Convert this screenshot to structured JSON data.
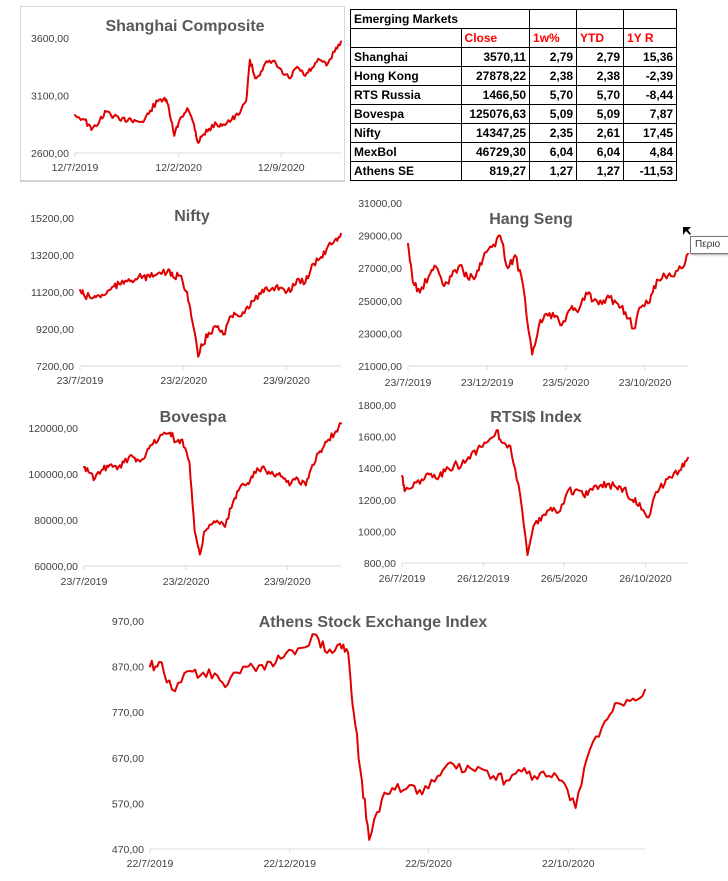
{
  "table": {
    "title": "Emerging Markets",
    "headers": [
      "",
      "Close",
      "1w%",
      "YTD",
      "1Y R"
    ],
    "rows": [
      [
        "Shanghai",
        "3570,11",
        "2,79",
        "2,79",
        "15,36"
      ],
      [
        "Hong Kong",
        "27878,22",
        "2,38",
        "2,38",
        "-2,39"
      ],
      [
        "RTS Russia",
        "1466,50",
        "5,70",
        "5,70",
        "-8,44"
      ],
      [
        "Bovespa",
        "125076,63",
        "5,09",
        "5,09",
        "7,87"
      ],
      [
        "Nifty",
        "14347,25",
        "2,35",
        "2,61",
        "17,45"
      ],
      [
        "MexBol",
        "46729,30",
        "6,04",
        "6,04",
        "4,84"
      ],
      [
        "Athens SE",
        "819,27",
        "1,27",
        "1,27",
        "-11,53"
      ]
    ]
  },
  "tooltip": {
    "text": "Περιο"
  },
  "colors": {
    "series": "#e00000",
    "header_red": "#ff0000",
    "title_gray": "#595959"
  },
  "chart_data": [
    {
      "type": "line",
      "title": "Shanghai Composite",
      "ylim": [
        2600,
        3600
      ],
      "yticks": [
        "2600,00",
        "3100,00",
        "3600,00"
      ],
      "xticks": [
        "12/7/2019",
        "12/2/2020",
        "12/9/2020"
      ],
      "x_range": [
        "12/7/2019",
        "14/1/2021"
      ],
      "series": [
        {
          "x": [
            "12/7/2019",
            "1/8/2019",
            "15/8/2019",
            "1/9/2019",
            "15/9/2019",
            "1/10/2019",
            "15/10/2019",
            "1/11/2019",
            "15/11/2019",
            "1/12/2019",
            "15/12/2019",
            "31/12/2019",
            "14/1/2020",
            "23/1/2020",
            "3/2/2020",
            "15/2/2020",
            "1/3/2020",
            "15/3/2020",
            "23/3/2020",
            "1/4/2020",
            "15/4/2020",
            "1/5/2020",
            "15/5/2020",
            "1/6/2020",
            "15/6/2020",
            "1/7/2020",
            "9/7/2020",
            "20/7/2020",
            "1/8/2020",
            "15/8/2020",
            "1/9/2020",
            "15/9/2020",
            "1/10/2020",
            "15/10/2020",
            "1/11/2020",
            "15/11/2020",
            "1/12/2020",
            "15/12/2020",
            "1/1/2021",
            "14/1/2021"
          ],
          "values": [
            2930,
            2890,
            2800,
            2880,
            2960,
            2920,
            2880,
            2900,
            2880,
            2870,
            2970,
            3050,
            3080,
            2980,
            2750,
            2900,
            2990,
            2850,
            2690,
            2750,
            2810,
            2850,
            2850,
            2890,
            2930,
            3050,
            3410,
            3250,
            3310,
            3390,
            3380,
            3290,
            3250,
            3350,
            3270,
            3340,
            3410,
            3360,
            3480,
            3570
          ]
        }
      ]
    },
    {
      "type": "line",
      "title": "Nifty",
      "ylim": [
        7200,
        15200
      ],
      "yticks": [
        "7200,00",
        "9200,00",
        "11200,00",
        "13200,00",
        "15200,00"
      ],
      "xticks": [
        "23/7/2019",
        "23/2/2020",
        "23/9/2020"
      ],
      "x_range": [
        "23/7/2019",
        "14/1/2021"
      ],
      "series": [
        {
          "x": [
            "23/7/2019",
            "1/8/2019",
            "20/8/2019",
            "1/9/2019",
            "15/9/2019",
            "1/10/2019",
            "15/10/2019",
            "1/11/2019",
            "15/11/2019",
            "1/12/2019",
            "15/12/2019",
            "31/12/2019",
            "20/1/2020",
            "1/2/2020",
            "15/2/2020",
            "1/3/2020",
            "12/3/2020",
            "24/3/2020",
            "1/4/2020",
            "15/4/2020",
            "1/5/2020",
            "15/5/2020",
            "1/6/2020",
            "15/6/2020",
            "1/7/2020",
            "15/7/2020",
            "1/8/2020",
            "15/8/2020",
            "1/9/2020",
            "15/9/2020",
            "1/10/2020",
            "15/10/2020",
            "1/11/2020",
            "15/11/2020",
            "1/12/2020",
            "15/12/2020",
            "1/1/2021",
            "14/1/2021"
          ],
          "values": [
            11300,
            11000,
            10900,
            11000,
            11100,
            11500,
            11600,
            11900,
            11900,
            12050,
            12000,
            12200,
            12300,
            12000,
            12100,
            11200,
            9600,
            7700,
            8300,
            9000,
            9300,
            8900,
            9900,
            9900,
            10300,
            10700,
            11100,
            11300,
            11500,
            11400,
            11200,
            11900,
            11700,
            12700,
            13000,
            13500,
            14000,
            14347
          ]
        }
      ]
    },
    {
      "type": "line",
      "title": "Hang Seng",
      "ylim": [
        21000,
        31000
      ],
      "yticks": [
        "21000,00",
        "23000,00",
        "25000,00",
        "27000,00",
        "29000,00",
        "31000,00"
      ],
      "xticks": [
        "23/7/2019",
        "23/12/2019",
        "23/5/2020",
        "23/10/2020"
      ],
      "x_range": [
        "23/7/2019",
        "14/1/2021"
      ],
      "series": [
        {
          "x": [
            "23/7/2019",
            "1/8/2019",
            "15/8/2019",
            "1/9/2019",
            "15/9/2019",
            "1/10/2019",
            "15/10/2019",
            "1/11/2019",
            "15/11/2019",
            "1/12/2019",
            "15/12/2019",
            "1/1/2020",
            "17/1/2020",
            "1/2/2020",
            "15/2/2020",
            "1/3/2020",
            "19/3/2020",
            "1/4/2020",
            "15/4/2020",
            "1/5/2020",
            "15/5/2020",
            "1/6/2020",
            "15/6/2020",
            "1/7/2020",
            "15/7/2020",
            "1/8/2020",
            "15/8/2020",
            "1/9/2020",
            "15/9/2020",
            "1/10/2020",
            "15/10/2020",
            "1/11/2020",
            "15/11/2020",
            "1/12/2020",
            "15/12/2020",
            "1/1/2021",
            "14/1/2021"
          ],
          "values": [
            28500,
            26200,
            25500,
            26500,
            27100,
            25900,
            26500,
            27200,
            26400,
            26500,
            27600,
            28300,
            29000,
            27000,
            27800,
            26000,
            21700,
            23500,
            24200,
            24000,
            23500,
            24500,
            24300,
            25500,
            25000,
            24800,
            25200,
            24800,
            24300,
            23300,
            24600,
            24900,
            26300,
            26500,
            26500,
            27000,
            27878
          ]
        }
      ]
    },
    {
      "type": "line",
      "title": "Bovespa",
      "ylim": [
        60000,
        120000
      ],
      "yticks": [
        "60000,00",
        "80000,00",
        "100000,00",
        "120000,00"
      ],
      "xticks": [
        "23/7/2019",
        "23/2/2020",
        "23/9/2020"
      ],
      "x_range": [
        "23/7/2019",
        "14/1/2021"
      ],
      "series": [
        {
          "x": [
            "23/7/2019",
            "1/8/2019",
            "15/8/2019",
            "1/9/2019",
            "15/9/2019",
            "1/10/2019",
            "15/10/2019",
            "1/11/2019",
            "15/11/2019",
            "1/12/2019",
            "15/12/2019",
            "31/12/2019",
            "20/1/2020",
            "1/2/2020",
            "15/2/2020",
            "1/3/2020",
            "12/3/2020",
            "23/3/2020",
            "1/4/2020",
            "15/4/2020",
            "1/5/2020",
            "15/5/2020",
            "1/6/2020",
            "15/6/2020",
            "1/7/2020",
            "15/7/2020",
            "1/8/2020",
            "15/8/2020",
            "1/9/2020",
            "15/9/2020",
            "1/10/2020",
            "15/10/2020",
            "1/11/2020",
            "15/11/2020",
            "1/12/2020",
            "15/12/2020",
            "1/1/2021",
            "14/1/2021"
          ],
          "values": [
            103000,
            101000,
            98000,
            102000,
            104000,
            102000,
            105000,
            108000,
            106000,
            109000,
            113000,
            117000,
            118000,
            114000,
            115000,
            105000,
            75000,
            65000,
            75000,
            78000,
            79000,
            77000,
            88000,
            94000,
            96000,
            101000,
            103000,
            101000,
            100000,
            98000,
            96000,
            98000,
            95000,
            104000,
            110000,
            114000,
            118000,
            122000
          ]
        }
      ]
    },
    {
      "type": "line",
      "title": "RTSI$ Index",
      "ylim": [
        800,
        1800
      ],
      "yticks": [
        "800,00",
        "1000,00",
        "1200,00",
        "1400,00",
        "1600,00",
        "1800,00"
      ],
      "xticks": [
        "26/7/2019",
        "26/12/2019",
        "26/5/2020",
        "26/10/2020"
      ],
      "x_range": [
        "26/7/2019",
        "14/1/2021"
      ],
      "series": [
        {
          "x": [
            "26/7/2019",
            "1/8/2019",
            "15/8/2019",
            "1/9/2019",
            "15/9/2019",
            "1/10/2019",
            "15/10/2019",
            "1/11/2019",
            "15/11/2019",
            "1/12/2019",
            "15/12/2019",
            "31/12/2019",
            "20/1/2020",
            "1/2/2020",
            "15/2/2020",
            "1/3/2020",
            "18/3/2020",
            "1/4/2020",
            "15/4/2020",
            "1/5/2020",
            "15/5/2020",
            "1/6/2020",
            "15/6/2020",
            "1/7/2020",
            "15/7/2020",
            "1/8/2020",
            "15/8/2020",
            "1/9/2020",
            "15/9/2020",
            "1/10/2020",
            "15/10/2020",
            "1/11/2020",
            "15/11/2020",
            "1/12/2020",
            "15/12/2020",
            "1/1/2021",
            "14/1/2021"
          ],
          "values": [
            1350,
            1260,
            1280,
            1330,
            1360,
            1330,
            1380,
            1420,
            1420,
            1460,
            1520,
            1560,
            1640,
            1560,
            1540,
            1300,
            850,
            1050,
            1100,
            1150,
            1120,
            1250,
            1260,
            1230,
            1270,
            1290,
            1300,
            1280,
            1270,
            1200,
            1180,
            1090,
            1250,
            1300,
            1340,
            1390,
            1466
          ]
        }
      ]
    },
    {
      "type": "line",
      "title": "Athens Stock Exchange Index",
      "ylim": [
        470,
        970
      ],
      "yticks": [
        "470,00",
        "570,00",
        "670,00",
        "770,00",
        "870,00",
        "970,00"
      ],
      "xticks": [
        "22/7/2019",
        "22/12/2019",
        "22/5/2020",
        "22/10/2020"
      ],
      "x_range": [
        "22/7/2019",
        "14/1/2021"
      ],
      "series": [
        {
          "x": [
            "22/7/2019",
            "1/8/2019",
            "15/8/2019",
            "1/9/2019",
            "15/9/2019",
            "1/10/2019",
            "15/10/2019",
            "1/11/2019",
            "15/11/2019",
            "1/12/2019",
            "15/12/2019",
            "31/12/2019",
            "20/1/2020",
            "1/2/2020",
            "15/2/2020",
            "24/2/2020",
            "1/3/2020",
            "10/3/2020",
            "18/3/2020",
            "1/4/2020",
            "15/4/2020",
            "1/5/2020",
            "15/5/2020",
            "1/6/2020",
            "15/6/2020",
            "1/7/2020",
            "15/7/2020",
            "1/8/2020",
            "15/8/2020",
            "1/9/2020",
            "15/9/2020",
            "1/10/2020",
            "15/10/2020",
            "30/10/2020",
            "15/11/2020",
            "1/12/2020",
            "15/12/2020",
            "1/1/2021",
            "14/1/2021"
          ],
          "values": [
            870,
            880,
            820,
            860,
            850,
            855,
            830,
            870,
            860,
            880,
            890,
            910,
            940,
            900,
            920,
            900,
            770,
            620,
            490,
            580,
            600,
            610,
            590,
            630,
            660,
            640,
            650,
            630,
            620,
            640,
            630,
            630,
            620,
            560,
            690,
            750,
            790,
            800,
            819
          ]
        }
      ]
    }
  ]
}
